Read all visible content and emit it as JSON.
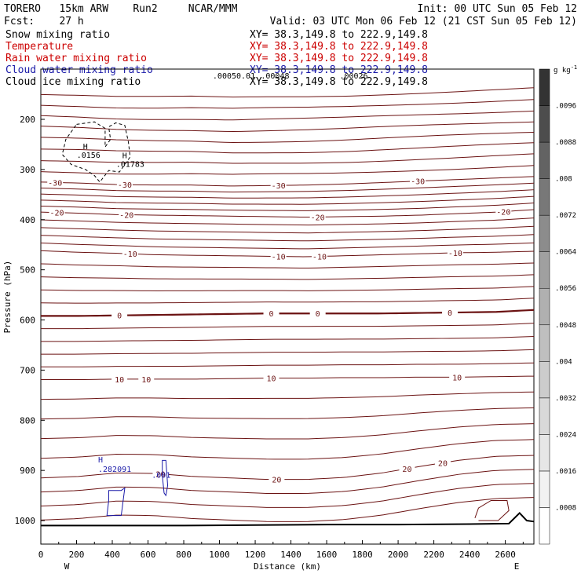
{
  "header": {
    "left1": "TORERO   15km ARW    Run2     NCAR/MMM",
    "right1": "Init: 00 UTC Sun 05 Feb 12",
    "left2": "Fcst:    27 h",
    "right2": "Valid: 03 UTC Mon 06 Feb 12 (21 CST Sun 05 Feb 12)"
  },
  "fields": [
    {
      "name": "Snow mixing ratio",
      "xy": "XY=  38.3,149.8 to 222.9,149.8",
      "color": "#000000"
    },
    {
      "name": "Temperature",
      "xy": "XY=  38.3,149.8 to 222.9,149.8",
      "color": "#cc0000"
    },
    {
      "name": "Rain water mixing ratio",
      "xy": "XY=  38.3,149.8 to 222.9,149.8",
      "color": "#cc0000"
    },
    {
      "name": "Cloud water mixing ratio",
      "xy": "XY=  38.3,149.8 to 222.9,149.8",
      "color": "#1a1aa8"
    },
    {
      "name": "Cloud ice mixing ratio",
      "xy": "XY=  38.3,149.8 to 222.9,149.8",
      "color": "#000000"
    }
  ],
  "overlay_labels": [
    ".00050.01",
    ".00048",
    ".00026"
  ],
  "colorbar": {
    "unit": "g kg",
    "unit_exp": "-1",
    "levels": [
      0.0008,
      0.0016,
      0.0024,
      0.0032,
      0.004,
      0.0048,
      0.0056,
      0.0064,
      0.0072,
      0.008,
      0.0088,
      0.0096
    ],
    "labels": [
      ".0008",
      ".0016",
      ".0024",
      ".0032",
      ".004",
      ".0048",
      ".0056",
      ".0064",
      ".0072",
      ".008",
      ".0088",
      ".0096"
    ],
    "colors": [
      "#ffffff",
      "#f2f2f2",
      "#e6e6e6",
      "#d9d9d9",
      "#cccccc",
      "#bfbfbf",
      "#b0b0b0",
      "#a0a0a0",
      "#8c8c8c",
      "#787878",
      "#636363",
      "#4d4d4d",
      "#333333"
    ]
  },
  "chart_data": {
    "type": "contour",
    "xlabel": "Distance (km)",
    "ylabel": "Pressure (hPa)",
    "xlim": [
      0,
      2760
    ],
    "ylim": [
      1050,
      100
    ],
    "x_ticks": [
      0,
      200,
      400,
      600,
      800,
      1000,
      1200,
      1400,
      1600,
      1800,
      2000,
      2200,
      2400,
      2600
    ],
    "y_ticks": [
      200,
      300,
      400,
      500,
      600,
      700,
      800,
      900,
      1000
    ],
    "left_end": "W",
    "right_end": "E",
    "colors": {
      "temperature": "#6b1212",
      "snow": "#000000",
      "cloud_water": "#1a1aa8",
      "terrain": "#000000"
    },
    "temperature_isotherms_C": [
      {
        "value": -30,
        "pressure": [
          325,
          327,
          330,
          331,
          331,
          333,
          332,
          331,
          329,
          326,
          323,
          320,
          317,
          314
        ],
        "labels": [
          {
            "text": "-30",
            "x": 80
          },
          {
            "text": "-30",
            "x": 470
          },
          {
            "text": "-30",
            "x": 1330
          },
          {
            "text": "-30",
            "x": 2110
          }
        ]
      },
      {
        "value": -20,
        "pressure": [
          385,
          387,
          390,
          391,
          392,
          393,
          394,
          395,
          394,
          393,
          391,
          388,
          385,
          380
        ],
        "labels": [
          {
            "text": "-20",
            "x": 90
          },
          {
            "text": "-20",
            "x": 480
          },
          {
            "text": "-20",
            "x": 1550
          },
          {
            "text": "-20",
            "x": 2590
          }
        ]
      },
      {
        "value": -10,
        "pressure": [
          462,
          465,
          467,
          470,
          471,
          472,
          473,
          474,
          472,
          470,
          468,
          466,
          465,
          463
        ],
        "labels": [
          {
            "text": "-10",
            "x": 500
          },
          {
            "text": "-10",
            "x": 1330
          },
          {
            "text": "-10",
            "x": 1560
          },
          {
            "text": "-10",
            "x": 2320
          }
        ]
      },
      {
        "value": 0,
        "pressure": [
          592,
          592,
          591,
          590,
          589,
          588,
          587,
          587,
          587,
          587,
          586,
          585,
          584,
          580
        ],
        "bold": true,
        "labels": [
          {
            "text": "0",
            "x": 440
          },
          {
            "text": "0",
            "x": 1290
          },
          {
            "text": "0",
            "x": 1550
          },
          {
            "text": "0",
            "x": 2290
          }
        ]
      },
      {
        "value": 10,
        "pressure": [
          719,
          719,
          718,
          718,
          718,
          717,
          716,
          716,
          715,
          715,
          714,
          714,
          713,
          712
        ],
        "labels": [
          {
            "text": "10",
            "x": 440
          },
          {
            "text": "10",
            "x": 590
          },
          {
            "text": "10",
            "x": 1290
          },
          {
            "text": "10",
            "x": 2330
          }
        ]
      },
      {
        "value": 20,
        "pressure": [
          915,
          912,
          905,
          906,
          912,
          915,
          918,
          918,
          914,
          905,
          892,
          880,
          872,
          870
        ],
        "labels": [
          {
            "text": "20",
            "x": 670
          },
          {
            "text": "20",
            "x": 1320
          },
          {
            "text": "20",
            "x": 2050
          },
          {
            "text": "20",
            "x": 2250
          }
        ]
      }
    ],
    "snow_maxima": [
      {
        "label": "H",
        "value": ".0156",
        "x": 280,
        "pressure": 272
      },
      {
        "label": "H",
        "value": ".01783",
        "x": 500,
        "pressure": 290
      }
    ],
    "cloud_water_maxima": [
      {
        "label": "H",
        "value": ".282091",
        "x": 400,
        "pressure": 906
      },
      {
        "label": "",
        "value": ".001",
        "x": 700,
        "pressure": 918
      }
    ]
  }
}
